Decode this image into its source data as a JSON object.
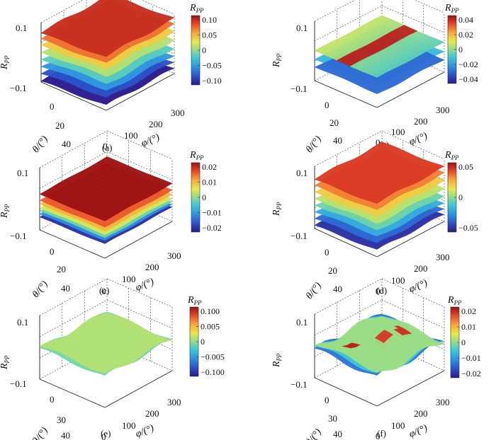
{
  "figure": {
    "colormap": [
      "#2b1a8c",
      "#2b4fc8",
      "#2f8fe0",
      "#3cc5d8",
      "#8fdc8e",
      "#e8e84a",
      "#f9a83a",
      "#e8452a",
      "#9c1212"
    ],
    "axis_labels": {
      "z": "R",
      "z_sub": "PP",
      "theta": "θ/(°)",
      "phi": "φ/(°)"
    },
    "colorbar_title": "R",
    "colorbar_sub": "PP"
  },
  "chart_data": [
    {
      "id": "a",
      "caption": "(a)",
      "type": "surface3d",
      "zlim": [
        -0.1,
        0.1
      ],
      "z_ticks": [
        "0.1",
        "−0.1"
      ],
      "theta_ticks": [
        "0",
        "20",
        "40"
      ],
      "phi_ticks": [
        "0",
        "100",
        "200",
        "300"
      ],
      "colorbar": {
        "range": [
          -0.1,
          0.1
        ],
        "ticks": [
          "0.10",
          "0.05",
          "0",
          "−0.05",
          "−0.10"
        ]
      },
      "mode": "stack",
      "layers": [
        {
          "z": -0.085,
          "c": 0.0
        },
        {
          "z": -0.06,
          "c": 0.13
        },
        {
          "z": -0.035,
          "c": 0.27
        },
        {
          "z": -0.01,
          "c": 0.42
        },
        {
          "z": 0.015,
          "c": 0.55
        },
        {
          "z": 0.04,
          "c": 0.68
        },
        {
          "z": 0.062,
          "c": 0.82
        },
        {
          "z": 0.082,
          "c": 0.93
        }
      ],
      "wave": 0.012
    },
    {
      "id": "b",
      "caption": "(b)",
      "type": "surface3d",
      "zlim": [
        -0.1,
        0.1
      ],
      "z_ticks": [
        "0.1",
        "−0.1"
      ],
      "theta_ticks": [
        "0",
        "20",
        "40"
      ],
      "phi_ticks": [
        "0",
        "100",
        "200",
        "300"
      ],
      "colorbar": {
        "range": [
          -0.045,
          0.045
        ],
        "ticks": [
          "0.04",
          "0.02",
          "0",
          "−0.02",
          "−0.04"
        ]
      },
      "mode": "band",
      "base_z": 0.0,
      "base_c": 0.5,
      "stripe": {
        "c": 0.95,
        "theta_from": 0.45,
        "theta_to": 0.62
      },
      "below": [
        {
          "z": -0.03,
          "c": 0.35
        },
        {
          "z": -0.055,
          "c": 0.18
        }
      ]
    },
    {
      "id": "c",
      "caption": "(c)",
      "type": "surface3d",
      "zlim": [
        -0.1,
        0.1
      ],
      "z_ticks": [
        "0.1",
        "−0.1"
      ],
      "theta_ticks": [
        "0",
        "20",
        "40"
      ],
      "phi_ticks": [
        "0",
        "100",
        "200",
        "300"
      ],
      "colorbar": {
        "range": [
          -0.025,
          0.025
        ],
        "ticks": [
          "0.02",
          "0.01",
          "0",
          "−0.01",
          "−0.02"
        ]
      },
      "mode": "stack",
      "layers": [
        {
          "z": -0.055,
          "c": 0.05
        },
        {
          "z": -0.045,
          "c": 0.25
        },
        {
          "z": -0.035,
          "c": 0.45
        },
        {
          "z": -0.025,
          "c": 0.6
        },
        {
          "z": -0.012,
          "c": 0.72
        },
        {
          "z": 0.0,
          "c": 0.85
        },
        {
          "z": 0.02,
          "c": 1.0
        }
      ],
      "wave": 0.004
    },
    {
      "id": "d",
      "caption": "(d)",
      "type": "surface3d",
      "zlim": [
        -0.1,
        0.1
      ],
      "z_ticks": [
        "0.1",
        "−0.1"
      ],
      "theta_ticks": [
        "0",
        "20",
        "40"
      ],
      "phi_ticks": [
        "0",
        "100",
        "200",
        "300"
      ],
      "colorbar": {
        "range": [
          -0.065,
          0.065
        ],
        "ticks": [
          "0.05",
          "0",
          "−0.05"
        ]
      },
      "mode": "stack",
      "layers": [
        {
          "z": -0.08,
          "c": 0.05
        },
        {
          "z": -0.058,
          "c": 0.18
        },
        {
          "z": -0.036,
          "c": 0.32
        },
        {
          "z": -0.014,
          "c": 0.45
        },
        {
          "z": 0.008,
          "c": 0.56
        },
        {
          "z": 0.03,
          "c": 0.68
        },
        {
          "z": 0.052,
          "c": 0.8
        },
        {
          "z": 0.072,
          "c": 0.9
        }
      ],
      "wave": 0.01
    },
    {
      "id": "e",
      "caption": "(e)",
      "type": "surface3d",
      "zlim": [
        -0.1,
        0.1
      ],
      "z_ticks": [
        "0.1",
        "−0.1"
      ],
      "theta_ticks": [
        "0",
        "30",
        "40"
      ],
      "phi_ticks": [
        "0",
        "100",
        "200",
        "300"
      ],
      "colorbar": {
        "range": [
          -0.1,
          0.1
        ],
        "ticks": [
          "0.100",
          "0.005",
          "0",
          "−0.005",
          "−0.100"
        ]
      },
      "mode": "flat",
      "layers": [
        {
          "z": -0.006,
          "c": 0.46
        },
        {
          "z": 0.0,
          "c": 0.55
        }
      ],
      "wave": 0.012
    },
    {
      "id": "f",
      "caption": "(f)",
      "type": "surface3d",
      "zlim": [
        -0.1,
        0.1
      ],
      "z_ticks": [
        "0.1",
        "−0.1"
      ],
      "theta_ticks": [
        "0",
        "30",
        "40"
      ],
      "phi_ticks": [
        "0",
        "100",
        "200",
        "300"
      ],
      "colorbar": {
        "range": [
          -0.025,
          0.025
        ],
        "ticks": [
          "0.02",
          "0.01",
          "0",
          "−0.01",
          "−0.02"
        ]
      },
      "mode": "flat",
      "layers": [
        {
          "z": -0.014,
          "c": 0.2
        },
        {
          "z": -0.007,
          "c": 0.38
        },
        {
          "z": 0.0,
          "c": 0.52
        }
      ],
      "wave": 0.018,
      "spots": [
        {
          "u": 0.28,
          "v": 0.72,
          "c": 0.95
        },
        {
          "u": 0.55,
          "v": 0.5,
          "c": 0.9
        },
        {
          "u": 0.8,
          "v": 0.45,
          "c": 0.92
        }
      ]
    }
  ]
}
